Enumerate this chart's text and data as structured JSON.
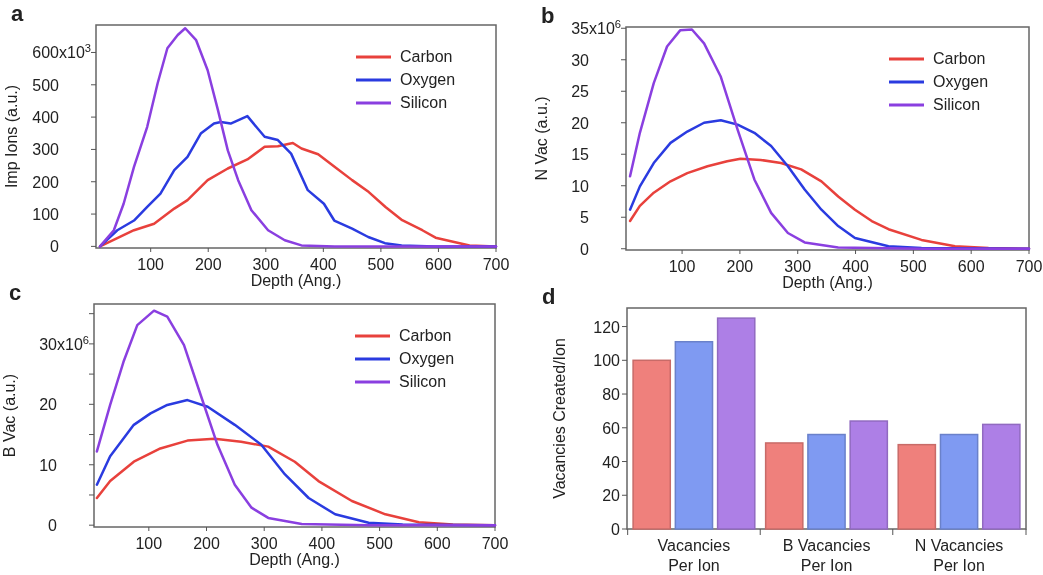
{
  "chart_data": [
    {
      "type": "line",
      "title": "a",
      "xlabel": "Depth (Ang.)",
      "ylabel": "Imp Ions (a.u.)",
      "xlim": [
        5,
        700
      ],
      "xticks": [
        100,
        200,
        300,
        400,
        500,
        600,
        700
      ],
      "ylim": [
        -5,
        685
      ],
      "yticks": [
        0,
        100,
        200,
        300,
        400,
        500,
        600
      ],
      "annotations": [
        "x10$^{3}$"
      ],
      "legend": "top right",
      "series": [
        {
          "name": "Carbon",
          "color": "#e8413c",
          "x": [
            12,
            71,
            106,
            141,
            164,
            199,
            234,
            268,
            298,
            321,
            347,
            362,
            391,
            420,
            450,
            479,
            508,
            537,
            572,
            595,
            654,
            700
          ],
          "values": [
            0,
            50,
            70,
            117,
            143,
            205,
            241,
            269,
            308,
            310,
            320,
            303,
            285,
            246,
            205,
            168,
            122,
            81,
            50,
            27,
            3,
            0
          ]
        },
        {
          "name": "Oxygen",
          "color": "#2a3be0",
          "x": [
            12,
            42,
            71,
            94,
            117,
            141,
            164,
            187,
            210,
            222,
            239,
            268,
            298,
            321,
            344,
            373,
            401,
            419,
            450,
            478,
            507,
            536,
            594,
            700
          ],
          "values": [
            0,
            50,
            80,
            122,
            163,
            236,
            277,
            349,
            380,
            385,
            380,
            403,
            339,
            329,
            287,
            174,
            132,
            80,
            55,
            29,
            10,
            3,
            0,
            0
          ]
        },
        {
          "name": "Silicon",
          "color": "#8a3fe0",
          "x": [
            12,
            36,
            53,
            71,
            94,
            112,
            129,
            147,
            160,
            179,
            199,
            217,
            234,
            252,
            275,
            304,
            333,
            362,
            420,
            700
          ],
          "values": [
            0,
            50,
            132,
            246,
            370,
            504,
            613,
            654,
            675,
            638,
            545,
            421,
            297,
            205,
            112,
            50,
            19,
            3,
            0,
            0
          ]
        }
      ]
    },
    {
      "type": "line",
      "title": "b",
      "xlabel": "Depth (Ang.)",
      "ylabel": "N Vac (a.u.)",
      "xlim": [
        3,
        700
      ],
      "xticks": [
        100,
        200,
        300,
        400,
        500,
        600,
        700
      ],
      "ylim": [
        -0.2,
        35.2
      ],
      "yticks": [
        0,
        5,
        10,
        15,
        20,
        25,
        30,
        35
      ],
      "annotations": [
        "x10$^{6}$"
      ],
      "legend": "top right",
      "series": [
        {
          "name": "Carbon",
          "color": "#e8413c",
          "x": [
            10,
            27,
            51,
            80,
            109,
            144,
            178,
            201,
            236,
            271,
            306,
            341,
            370,
            399,
            428,
            457,
            514,
            572,
            630,
            700
          ],
          "values": [
            4.4,
            6.8,
            8.9,
            10.7,
            12,
            13.1,
            13.9,
            14.3,
            14.1,
            13.6,
            12.6,
            10.7,
            8.3,
            6.2,
            4.4,
            3.1,
            1.4,
            0.4,
            0.1,
            0
          ]
        },
        {
          "name": "Oxygen",
          "color": "#2a3be0",
          "x": [
            10,
            27,
            51,
            80,
            109,
            138,
            167,
            196,
            225,
            254,
            283,
            312,
            341,
            370,
            399,
            457,
            514,
            700
          ],
          "values": [
            6.2,
            9.9,
            13.6,
            16.8,
            18.6,
            20,
            20.4,
            19.7,
            18.4,
            16.3,
            13.1,
            9.4,
            6.2,
            3.6,
            1.7,
            0.4,
            0.1,
            0
          ]
        },
        {
          "name": "Silicon",
          "color": "#8a3fe0",
          "x": [
            10,
            27,
            51,
            74,
            97,
            117,
            138,
            167,
            196,
            225,
            254,
            283,
            312,
            370,
            514,
            700
          ],
          "values": [
            11.5,
            18.4,
            26.3,
            32.1,
            34.7,
            34.8,
            32.6,
            27.3,
            18.9,
            11,
            5.7,
            2.5,
            1,
            0.2,
            0,
            0
          ]
        }
      ]
    },
    {
      "type": "line",
      "title": "c",
      "xlabel": "Depth (Ang.)",
      "ylabel": "B Vac (a.u.)",
      "xlim": [
        5,
        700
      ],
      "xticks": [
        100,
        200,
        300,
        400,
        500,
        600,
        700
      ],
      "ylim": [
        -0.3,
        36.6
      ],
      "yticks": [
        0,
        {
          "value": 5,
          "label": null
        },
        10,
        {
          "value": 15,
          "label": null
        },
        20,
        {
          "value": 25,
          "label": null
        },
        30,
        {
          "value": 35,
          "label": null
        }
      ],
      "annotations": [
        "x10$^{6}$"
      ],
      "legend": "top right",
      "series": [
        {
          "name": "Carbon",
          "color": "#e8413c",
          "x": [
            10,
            33,
            74,
            120,
            167,
            214,
            260,
            307,
            353,
            394,
            452,
            510,
            568,
            627,
            700
          ],
          "values": [
            4.5,
            7.3,
            10.5,
            12.7,
            14,
            14.3,
            13.8,
            13,
            10.5,
            7.3,
            4,
            1.8,
            0.5,
            0.1,
            0
          ]
        },
        {
          "name": "Oxygen",
          "color": "#2a3be0",
          "x": [
            10,
            33,
            74,
            103,
            132,
            167,
            202,
            249,
            295,
            336,
            377,
            423,
            481,
            540,
            700
          ],
          "values": [
            6.7,
            11.4,
            16.6,
            18.5,
            19.9,
            20.7,
            19.6,
            16.6,
            13.3,
            8.4,
            4.5,
            1.8,
            0.4,
            0.1,
            0
          ]
        },
        {
          "name": "Silicon",
          "color": "#8a3fe0",
          "x": [
            10,
            33,
            56,
            80,
            109,
            132,
            161,
            190,
            219,
            249,
            278,
            307,
            365,
            481,
            700
          ],
          "values": [
            12.2,
            19.9,
            27,
            33.1,
            35.5,
            34.5,
            29.8,
            21.5,
            13.3,
            6.7,
            2.9,
            1.2,
            0.2,
            0,
            0
          ]
        }
      ]
    },
    {
      "type": "bar",
      "title": "d",
      "ylabel": "Vacancies Created/Ion",
      "categories": [
        "Vacancies Per Ion",
        "B Vacancies Per Ion",
        "N Vacancies Per Ion"
      ],
      "ylim": [
        0,
        131
      ],
      "yticks": [
        0,
        20,
        40,
        60,
        80,
        100,
        120
      ],
      "series": [
        {
          "color": "#ef807c",
          "values": [
            100,
            51,
            50
          ]
        },
        {
          "color": "#7f9af2",
          "values": [
            111,
            56,
            56
          ]
        },
        {
          "color": "#ad7fe6",
          "values": [
            125,
            64,
            62
          ]
        }
      ]
    }
  ]
}
